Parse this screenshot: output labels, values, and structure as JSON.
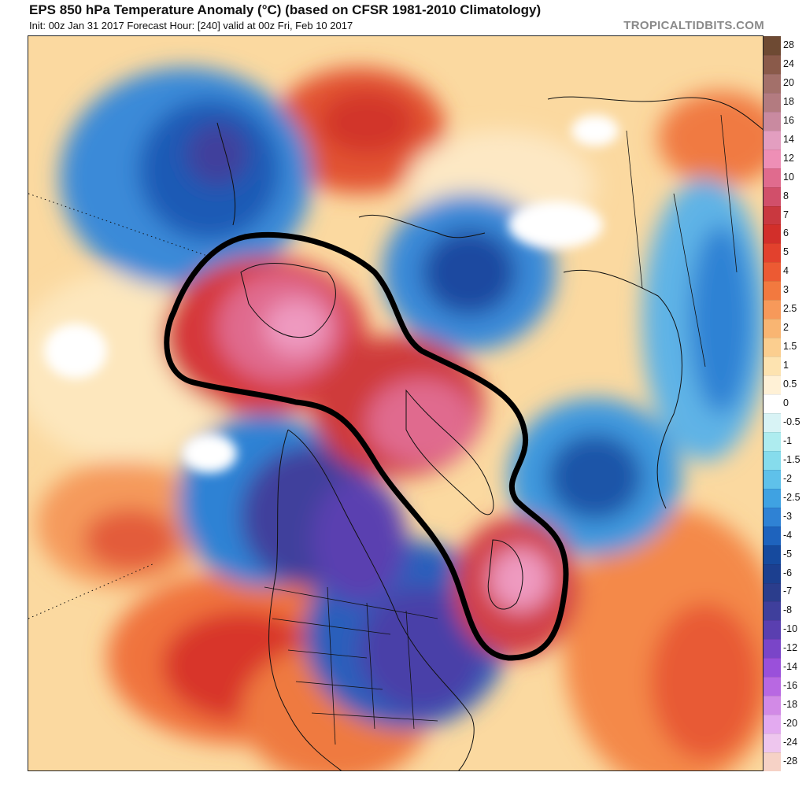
{
  "header": {
    "title": "EPS 850 hPa Temperature Anomaly (°C) (based on CFSR 1981-2010 Climatology)",
    "subtitle": "Init: 00z Jan 31 2017   Forecast Hour: [240]   valid at 00z Fri, Feb 10 2017",
    "brand": "TROPICALTIDBITS.COM"
  },
  "colorbar": {
    "levels": [
      {
        "label": "28",
        "color": "#6e4a33"
      },
      {
        "label": "24",
        "color": "#8a5a4a"
      },
      {
        "label": "20",
        "color": "#a3706a"
      },
      {
        "label": "18",
        "color": "#b37b80"
      },
      {
        "label": "16",
        "color": "#c98aa0"
      },
      {
        "label": "14",
        "color": "#e39ec0"
      },
      {
        "label": "12",
        "color": "#ee8fb6"
      },
      {
        "label": "10",
        "color": "#e06b8e"
      },
      {
        "label": "8",
        "color": "#d14f6a"
      },
      {
        "label": "7",
        "color": "#c9383f"
      },
      {
        "label": "6",
        "color": "#d22f2a"
      },
      {
        "label": "5",
        "color": "#e2412d"
      },
      {
        "label": "4",
        "color": "#ec5a33"
      },
      {
        "label": "3",
        "color": "#f2793f"
      },
      {
        "label": "2.5",
        "color": "#f7995a"
      },
      {
        "label": "2",
        "color": "#f9b572"
      },
      {
        "label": "1.5",
        "color": "#fbce8f"
      },
      {
        "label": "1",
        "color": "#fde3b0"
      },
      {
        "label": "0.5",
        "color": "#fff1d6"
      },
      {
        "label": "0",
        "color": "#ffffff"
      },
      {
        "label": "-0.5",
        "color": "#d8f3f5"
      },
      {
        "label": "-1",
        "color": "#aeecef"
      },
      {
        "label": "-1.5",
        "color": "#86dcec"
      },
      {
        "label": "-2",
        "color": "#5fc1ea"
      },
      {
        "label": "-2.5",
        "color": "#3fa2e2"
      },
      {
        "label": "-3",
        "color": "#2f82d4"
      },
      {
        "label": "-4",
        "color": "#1e63bd"
      },
      {
        "label": "-5",
        "color": "#164a9e"
      },
      {
        "label": "-6",
        "color": "#1c3f8f"
      },
      {
        "label": "-7",
        "color": "#2b3d8c"
      },
      {
        "label": "-8",
        "color": "#3f3f9c"
      },
      {
        "label": "-10",
        "color": "#5a3fb0"
      },
      {
        "label": "-12",
        "color": "#7a45c8"
      },
      {
        "label": "-14",
        "color": "#9a50da"
      },
      {
        "label": "-16",
        "color": "#b868e2"
      },
      {
        "label": "-18",
        "color": "#d28ae6"
      },
      {
        "label": "-20",
        "color": "#e3aaf0"
      },
      {
        "label": "-24",
        "color": "#eec6ee"
      },
      {
        "label": "-28",
        "color": "#f6d2c6"
      }
    ]
  }
}
